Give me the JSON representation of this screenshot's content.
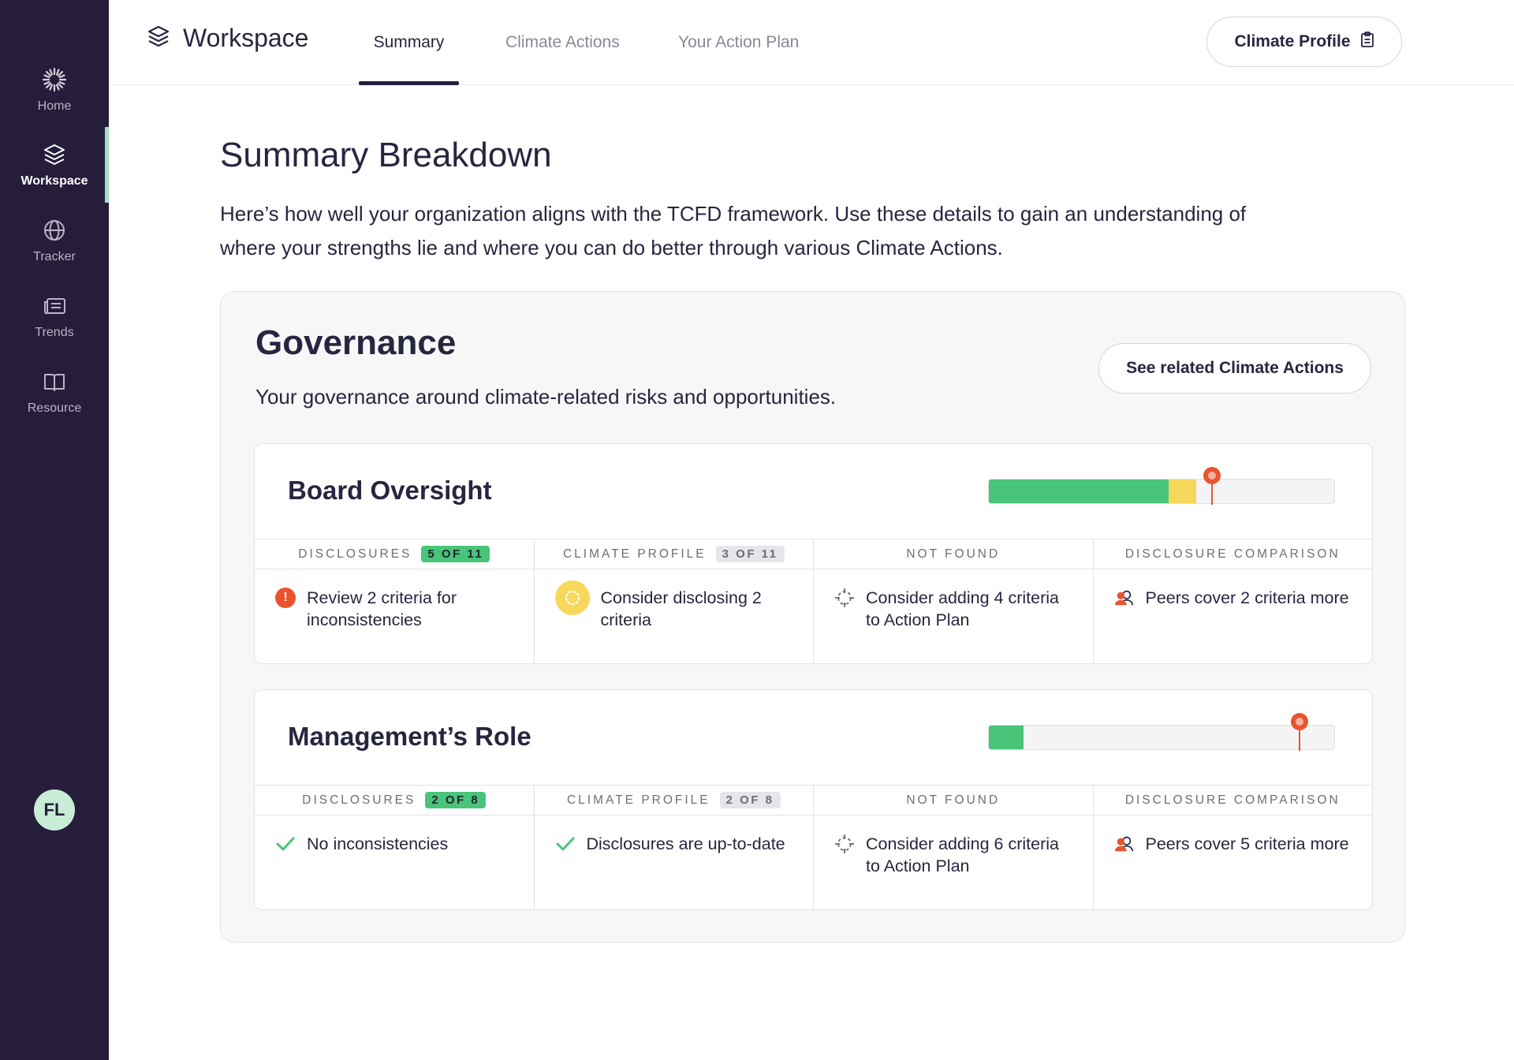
{
  "sidebar": {
    "items": [
      {
        "label": "Home",
        "icon": "sunburst-icon"
      },
      {
        "label": "Workspace",
        "icon": "layers-icon"
      },
      {
        "label": "Tracker",
        "icon": "globe-icon"
      },
      {
        "label": "Trends",
        "icon": "newspaper-icon"
      },
      {
        "label": "Resource",
        "icon": "book-icon"
      }
    ],
    "avatar": "FL"
  },
  "header": {
    "title": "Workspace",
    "tabs": [
      "Summary",
      "Climate Actions",
      "Your Action Plan"
    ],
    "active_tab": "Summary",
    "profile_button": "Climate Profile"
  },
  "main": {
    "title": "Summary Breakdown",
    "intro": "Here’s how well your organization aligns with the TCFD framework. Use these details to gain an understanding of where your strengths lie and where you can do better through various Climate Actions."
  },
  "section": {
    "title": "Governance",
    "description": "Your governance around climate-related risks and opportunities.",
    "related_button": "See related Climate Actions",
    "columns": [
      "DISCLOSURES",
      "CLIMATE PROFILE",
      "NOT FOUND",
      "DISCLOSURE COMPARISON"
    ],
    "cards": [
      {
        "title": "Board Oversight",
        "progress": {
          "green": 0.52,
          "yellow": 0.08,
          "marker": 0.645
        },
        "disclosures_badge": "5 OF 11",
        "profile_badge": "3 OF 11",
        "disclosures_text": "Review 2 criteria for inconsistencies",
        "profile_text": "Consider disclosing 2 criteria",
        "not_found_text": "Consider adding 4 criteria to Action Plan",
        "comparison_text": "Peers cover 2 criteria more"
      },
      {
        "title": "Management’s Role",
        "progress": {
          "green": 0.1,
          "yellow": 0,
          "marker": 0.9
        },
        "disclosures_badge": "2 OF 8",
        "profile_badge": "2 OF 8",
        "disclosures_text": "No inconsistencies",
        "profile_text": "Disclosures are up-to-date",
        "not_found_text": "Consider adding 6 criteria to Action Plan",
        "comparison_text": "Peers cover 5 criteria more"
      }
    ]
  },
  "colors": {
    "sidebar_bg": "#251d3a",
    "green": "#4ac478",
    "yellow": "#f8d85c",
    "orange": "#e8542e"
  }
}
